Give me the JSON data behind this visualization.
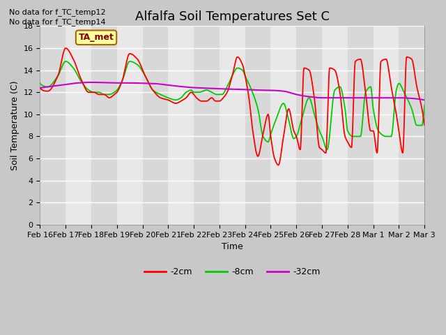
{
  "title": "Alfalfa Soil Temperatures Set C",
  "ylabel": "Soil Temperature (C)",
  "xlabel": "Time",
  "no_data_text": [
    "No data for f_TC_temp12",
    "No data for f_TC_temp14"
  ],
  "ta_met_label": "TA_met",
  "legend_entries": [
    "-2cm",
    "-8cm",
    "-32cm"
  ],
  "legend_colors": [
    "#ff0000",
    "#00cc00",
    "#cc00cc"
  ],
  "ylim": [
    0,
    18
  ],
  "yticks": [
    0,
    2,
    4,
    6,
    8,
    10,
    12,
    14,
    16,
    18
  ],
  "dates": [
    "Feb 16",
    "Feb 17",
    "Feb 18",
    "Feb 19",
    "Feb 20",
    "Feb 21",
    "Feb 22",
    "Feb 23",
    "Feb 24",
    "Feb 25",
    "Feb 26",
    "Feb 27",
    "Feb 28",
    "Mar 1",
    "Mar 2",
    "Mar 3"
  ],
  "band_colors": [
    "#d8d8d8",
    "#e8e8e8"
  ],
  "fig_bg": "#c8c8c8",
  "plot_bg": "#e8e8e8",
  "grid_color": "#ffffff",
  "title_fontsize": 13,
  "label_fontsize": 9,
  "tick_fontsize": 8
}
